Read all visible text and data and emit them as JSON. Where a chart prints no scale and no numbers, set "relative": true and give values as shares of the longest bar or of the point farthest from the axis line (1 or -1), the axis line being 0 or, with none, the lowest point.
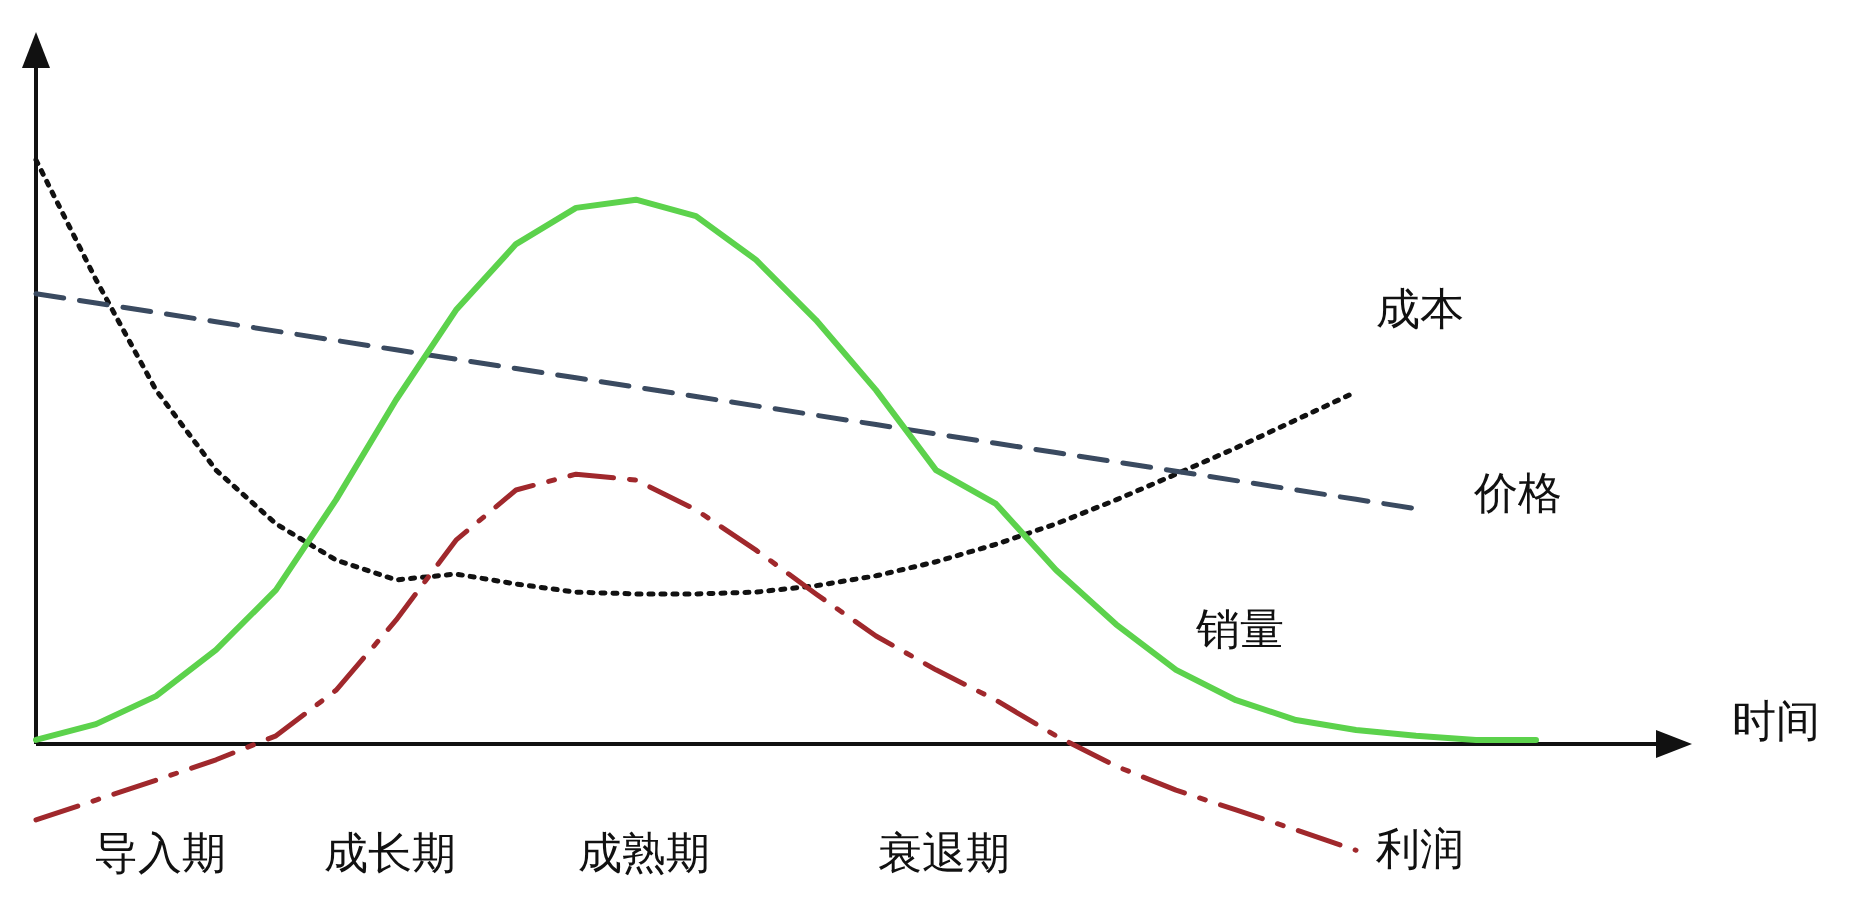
{
  "chart_data": {
    "type": "line",
    "relative": true,
    "xlabel": "时间",
    "legend": false,
    "grid": false,
    "categories": [
      null,
      null,
      null,
      null,
      null,
      null,
      null,
      null,
      null,
      null,
      null,
      null,
      null,
      null,
      null,
      null,
      null,
      null,
      null,
      null,
      null,
      null,
      null,
      null,
      null,
      null
    ],
    "series": [
      {
        "name": "成本",
        "color": "#111111",
        "line_style": "dotted",
        "values": [
          1.0,
          0.795,
          0.606,
          0.469,
          0.377,
          0.315,
          0.281,
          0.291,
          0.274,
          0.26,
          0.257,
          0.257,
          0.26,
          0.271,
          0.288,
          0.312,
          0.342,
          0.377,
          0.418,
          0.462,
          0.507,
          0.555,
          0.603,
          null,
          null,
          null
        ]
      },
      {
        "name": "价格",
        "color": "#3a4a60",
        "line_style": "dashed",
        "values": [
          0.771,
          0.755,
          0.739,
          0.723,
          0.707,
          0.691,
          0.675,
          0.659,
          0.643,
          0.627,
          0.611,
          0.595,
          0.579,
          0.563,
          0.547,
          0.531,
          0.515,
          0.499,
          0.483,
          0.467,
          0.451,
          0.435,
          0.419,
          0.403,
          null,
          null
        ]
      },
      {
        "name": "销量",
        "color": "#5cd24c",
        "line_style": "solid",
        "values": [
          0.007,
          0.034,
          0.082,
          0.161,
          0.264,
          0.418,
          0.589,
          0.743,
          0.856,
          0.918,
          0.932,
          0.904,
          0.829,
          0.726,
          0.606,
          0.469,
          0.411,
          0.298,
          0.205,
          0.127,
          0.075,
          0.041,
          0.024,
          0.014,
          0.007,
          0.007
        ]
      },
      {
        "name": "利润",
        "color": "#a0282c",
        "line_style": "dashdot",
        "values": [
          -0.13,
          -0.096,
          -0.062,
          -0.027,
          0.014,
          0.092,
          0.212,
          0.349,
          0.435,
          0.462,
          0.452,
          0.401,
          0.332,
          0.257,
          0.185,
          0.127,
          0.075,
          0.014,
          -0.038,
          -0.079,
          -0.113,
          -0.147,
          -0.182,
          null,
          null,
          null
        ]
      }
    ],
    "annotations": [
      "导入期",
      "成长期",
      "成熟期",
      "衰退期"
    ]
  }
}
